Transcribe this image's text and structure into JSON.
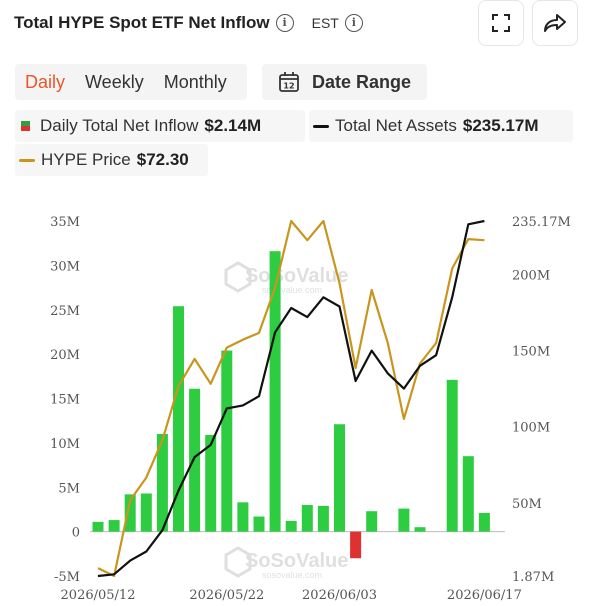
{
  "header": {
    "title": "Total HYPE Spot ETF Net Inflow",
    "timezone": "EST"
  },
  "tabs": [
    {
      "label": "Daily",
      "active": true
    },
    {
      "label": "Weekly",
      "active": false
    },
    {
      "label": "Monthly",
      "active": false
    }
  ],
  "date_range": {
    "label": "Date Range",
    "calendar_day": "12"
  },
  "legend": {
    "inflow": {
      "label": "Daily Total Net Inflow",
      "value": "$2.14M",
      "color_pos": "#2ecc40",
      "color_neg": "#e03131"
    },
    "assets": {
      "label": "Total Net Assets",
      "value": "$235.17M",
      "color": "#111111"
    },
    "price": {
      "label": "HYPE Price",
      "value": "$72.30",
      "color": "#c8961e"
    }
  },
  "watermark": {
    "name": "SoSoValue",
    "site": "sosovalue.com"
  },
  "chart_data": {
    "type": "bar",
    "title": "Total HYPE Spot ETF Net Inflow",
    "x_tick_labels": [
      "2026/05/12",
      "2026/05/22",
      "2026/06/03",
      "2026/06/17"
    ],
    "left_axis": {
      "ticks": [
        "35M",
        "30M",
        "25M",
        "20M",
        "15M",
        "10M",
        "5M",
        "0",
        "-5M"
      ],
      "ylim": [
        -5,
        35
      ],
      "unit": "M"
    },
    "right_axis": {
      "ticks": [
        "235.17M",
        "200M",
        "150M",
        "100M",
        "50M",
        "1.87M"
      ],
      "ylim": [
        1.87,
        235.17
      ],
      "unit": "M"
    },
    "series": [
      {
        "name": "Daily Total Net Inflow",
        "kind": "bar",
        "axis": "left",
        "values": [
          1.1,
          1.3,
          4.2,
          4.3,
          11.0,
          25.4,
          16.1,
          10.9,
          20.4,
          3.3,
          1.7,
          31.6,
          1.2,
          3.0,
          2.9,
          12.1,
          -3.0,
          2.3,
          0,
          2.6,
          0.5,
          0,
          17.1,
          8.5,
          2.1
        ]
      },
      {
        "name": "Total Net Assets",
        "kind": "line",
        "axis": "right",
        "values": [
          1.9,
          3,
          12,
          18,
          32,
          58,
          80,
          88,
          112,
          114,
          120,
          162,
          178,
          172,
          185,
          179,
          130,
          150,
          135,
          125,
          140,
          147,
          185,
          233,
          235.17
        ]
      },
      {
        "name": "HYPE Price",
        "kind": "line",
        "axis": "price",
        "values": [
          43.3,
          42.6,
          49.3,
          51.3,
          54.6,
          59.4,
          61.8,
          59.6,
          62.8,
          63.5,
          64.1,
          68.1,
          74.0,
          72.3,
          74.0,
          68.5,
          61.0,
          67.9,
          63.2,
          56.5,
          61.4,
          63.2,
          69.8,
          72.4,
          72.3
        ]
      }
    ]
  }
}
